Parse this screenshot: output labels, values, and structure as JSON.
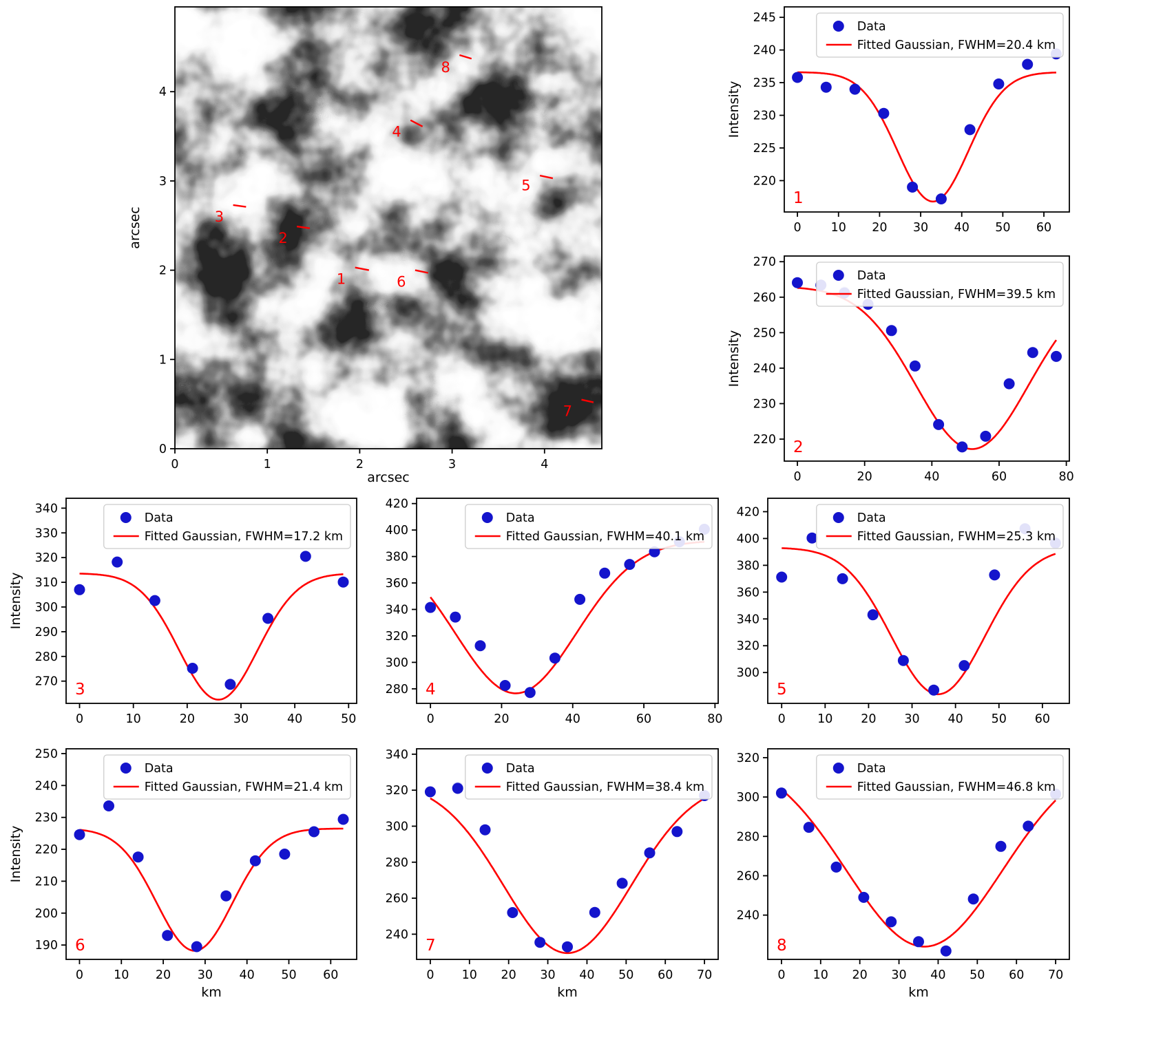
{
  "colors": {
    "background": "#ffffff",
    "axis": "#000000",
    "data_point": "#1414cc",
    "ghost_point": "#c9cdf2",
    "fit_line": "#ff0000",
    "annotation": "#ff0000",
    "legend_border": "#cccccc"
  },
  "map": {
    "xlabel": "arcsec",
    "ylabel": "arcsec",
    "xlim": [
      0,
      4.62
    ],
    "ylim": [
      0,
      4.95
    ],
    "xticks": [
      0,
      1,
      2,
      3,
      4
    ],
    "yticks": [
      0,
      1,
      2,
      3,
      4
    ],
    "markers": [
      {
        "label": "1",
        "tx": 1.8,
        "ty": 1.9,
        "lx1": 1.95,
        "ly1": 2.03,
        "lx2": 2.1,
        "ly2": 2.0
      },
      {
        "label": "2",
        "tx": 1.17,
        "ty": 2.36,
        "lx1": 1.32,
        "ly1": 2.49,
        "lx2": 1.46,
        "ly2": 2.47
      },
      {
        "label": "3",
        "tx": 0.48,
        "ty": 2.6,
        "lx1": 0.63,
        "ly1": 2.73,
        "lx2": 0.77,
        "ly2": 2.71
      },
      {
        "label": "4",
        "tx": 2.4,
        "ty": 3.55,
        "lx1": 2.55,
        "ly1": 3.68,
        "lx2": 2.68,
        "ly2": 3.61
      },
      {
        "label": "5",
        "tx": 3.8,
        "ty": 2.95,
        "lx1": 3.95,
        "ly1": 3.06,
        "lx2": 4.09,
        "ly2": 3.03
      },
      {
        "label": "6",
        "tx": 2.45,
        "ty": 1.87,
        "lx1": 2.6,
        "ly1": 2.0,
        "lx2": 2.74,
        "ly2": 1.97
      },
      {
        "label": "7",
        "tx": 4.25,
        "ty": 0.42,
        "lx1": 4.4,
        "ly1": 0.55,
        "lx2": 4.53,
        "ly2": 0.52
      },
      {
        "label": "8",
        "tx": 2.93,
        "ty": 4.27,
        "lx1": 3.08,
        "ly1": 4.41,
        "lx2": 3.21,
        "ly2": 4.37
      }
    ]
  },
  "chart_data": [
    {
      "type": "scatter",
      "panel": "1",
      "ylabel": "Intensity",
      "xlabel": "",
      "legend": [
        "Data",
        "Fitted Gaussian, FWHM=20.4 km"
      ],
      "fwhm_km": 20.4,
      "x": [
        0,
        7,
        14,
        21,
        28,
        35,
        42,
        49,
        56,
        63
      ],
      "y": [
        235.8,
        234.3,
        234.0,
        230.3,
        219.0,
        217.2,
        227.8,
        234.8,
        237.8,
        239.4
      ],
      "fit": {
        "baseline": 236.6,
        "min": 216.8,
        "center": 33.0
      },
      "xlim": [
        -3.2,
        66.2
      ],
      "ylim": [
        215.2,
        246.6
      ],
      "xticks": [
        0,
        10,
        20,
        30,
        40,
        50,
        60
      ],
      "yticks": [
        220,
        225,
        230,
        235,
        240,
        245
      ]
    },
    {
      "type": "scatter",
      "panel": "2",
      "ylabel": "Intensity",
      "xlabel": "",
      "legend": [
        "Data",
        "Fitted Gaussian, FWHM=39.5 km"
      ],
      "fwhm_km": 39.5,
      "x": [
        0,
        7,
        14,
        21,
        28,
        35,
        42,
        49,
        56,
        63,
        70,
        77
      ],
      "y": [
        264.1,
        263.4,
        261.2,
        258.0,
        250.6,
        240.6,
        224.1,
        217.8,
        220.8,
        235.6,
        244.4,
        243.3
      ],
      "ghost": {
        "x": 14,
        "y": 261.5
      },
      "fit": {
        "baseline": 263.0,
        "min": 217.2,
        "center": 52.0
      },
      "xlim": [
        -3.9,
        80.9
      ],
      "ylim": [
        213.8,
        271.6
      ],
      "xticks": [
        0,
        20,
        40,
        60,
        80
      ],
      "yticks": [
        220,
        230,
        240,
        250,
        260,
        270
      ]
    },
    {
      "type": "scatter",
      "panel": "3",
      "ylabel": "Intensity",
      "xlabel": "",
      "legend": [
        "Data",
        "Fitted Gaussian, FWHM=17.2 km"
      ],
      "fwhm_km": 17.2,
      "x": [
        0,
        7,
        14,
        21,
        28,
        35,
        42,
        49
      ],
      "y": [
        307.0,
        318.2,
        302.6,
        275.2,
        268.7,
        295.4,
        320.5,
        310.1
      ],
      "fit": {
        "baseline": 313.6,
        "min": 262.5,
        "center": 25.8
      },
      "xlim": [
        -2.5,
        51.5
      ],
      "ylim": [
        261.0,
        344.0
      ],
      "xticks": [
        0,
        10,
        20,
        30,
        40,
        50
      ],
      "yticks": [
        270,
        280,
        290,
        300,
        310,
        320,
        330,
        340
      ]
    },
    {
      "type": "scatter",
      "panel": "4",
      "ylabel": "",
      "xlabel": "",
      "legend": [
        "Data",
        "Fitted Gaussian, FWHM=40.1 km"
      ],
      "fwhm_km": 40.1,
      "x": [
        0,
        7,
        14,
        21,
        28,
        35,
        42,
        49,
        56,
        63,
        70,
        77
      ],
      "y": [
        341.5,
        334.2,
        312.6,
        282.5,
        277.2,
        303.2,
        347.6,
        367.4,
        374.0,
        383.6,
        391.2,
        400.6
      ],
      "fit": {
        "baseline": 392.0,
        "min": 276.6,
        "center": 24.0
      },
      "xlim": [
        -3.9,
        80.9
      ],
      "ylim": [
        269.0,
        424.0
      ],
      "xticks": [
        0,
        20,
        40,
        60,
        80
      ],
      "yticks": [
        280,
        300,
        320,
        340,
        360,
        380,
        400,
        420
      ]
    },
    {
      "type": "scatter",
      "panel": "5",
      "ylabel": "",
      "xlabel": "",
      "legend": [
        "Data",
        "Fitted Gaussian, FWHM=25.3 km"
      ],
      "fwhm_km": 25.3,
      "x": [
        0,
        7,
        14,
        21,
        28,
        35,
        42,
        49,
        56,
        63
      ],
      "y": [
        371.2,
        400.4,
        370.0,
        343.1,
        309.0,
        286.9,
        305.2,
        372.8,
        407.3,
        396.6
      ],
      "fit": {
        "baseline": 393.2,
        "min": 283.8,
        "center": 36.0
      },
      "xlim": [
        -3.2,
        66.2
      ],
      "ylim": [
        277.0,
        430.0
      ],
      "xticks": [
        0,
        10,
        20,
        30,
        40,
        50,
        60
      ],
      "yticks": [
        300,
        320,
        340,
        360,
        380,
        400,
        420
      ]
    },
    {
      "type": "scatter",
      "panel": "6",
      "ylabel": "Intensity",
      "xlabel": "km",
      "legend": [
        "Data",
        "Fitted Gaussian, FWHM=21.4 km"
      ],
      "fwhm_km": 21.4,
      "x": [
        0,
        7,
        14,
        21,
        28,
        35,
        42,
        49,
        56,
        63
      ],
      "y": [
        224.6,
        233.6,
        217.6,
        193.0,
        189.5,
        205.4,
        216.4,
        218.5,
        225.5,
        229.4
      ],
      "fit": {
        "baseline": 226.5,
        "min": 188.2,
        "center": 27.5
      },
      "xlim": [
        -3.2,
        66.2
      ],
      "ylim": [
        185.5,
        251.5
      ],
      "xticks": [
        0,
        10,
        20,
        30,
        40,
        50,
        60
      ],
      "yticks": [
        190,
        200,
        210,
        220,
        230,
        240,
        250
      ]
    },
    {
      "type": "scatter",
      "panel": "7",
      "ylabel": "",
      "xlabel": "km",
      "legend": [
        "Data",
        "Fitted Gaussian, FWHM=38.4 km"
      ],
      "fwhm_km": 38.4,
      "x": [
        0,
        7,
        14,
        21,
        28,
        35,
        42,
        49,
        56,
        63,
        70
      ],
      "y": [
        319.1,
        321.0,
        298.0,
        252.0,
        235.5,
        233.0,
        252.1,
        268.3,
        285.2,
        297.0,
        317.0
      ],
      "ghost": {
        "x": 7,
        "y": 321.5
      },
      "fit": {
        "baseline": 325.0,
        "min": 229.5,
        "center": 35.0
      },
      "xlim": [
        -3.5,
        73.5
      ],
      "ylim": [
        226.0,
        343.0
      ],
      "xticks": [
        0,
        10,
        20,
        30,
        40,
        50,
        60,
        70
      ],
      "yticks": [
        240,
        260,
        280,
        300,
        320,
        340
      ]
    },
    {
      "type": "scatter",
      "panel": "8",
      "ylabel": "",
      "xlabel": "km",
      "legend": [
        "Data",
        "Fitted Gaussian, FWHM=46.8 km"
      ],
      "fwhm_km": 46.8,
      "x": [
        0,
        7,
        14,
        21,
        28,
        35,
        42,
        49,
        56,
        63,
        70
      ],
      "y": [
        302.0,
        284.6,
        264.4,
        249.0,
        236.6,
        226.5,
        221.8,
        248.2,
        274.9,
        285.2,
        301.5
      ],
      "fit": {
        "baseline": 322.0,
        "min": 224.0,
        "center": 36.5
      },
      "xlim": [
        -3.5,
        73.5
      ],
      "ylim": [
        217.5,
        324.5
      ],
      "xticks": [
        0,
        10,
        20,
        30,
        40,
        50,
        60,
        70
      ],
      "yticks": [
        240,
        260,
        280,
        300,
        320
      ]
    }
  ]
}
